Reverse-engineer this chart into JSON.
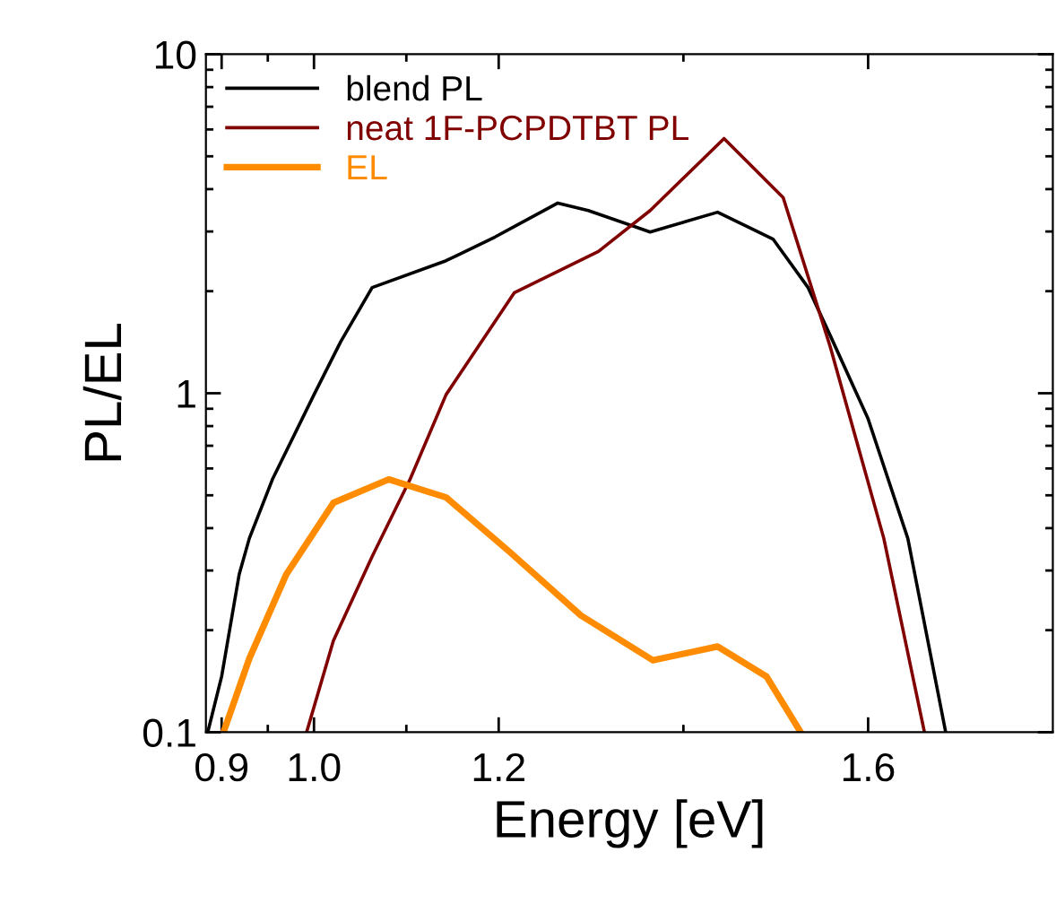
{
  "chart_data": {
    "type": "line",
    "xlabel": "Energy [eV]",
    "ylabel": "PL/EL",
    "log": "y",
    "xlim": [
      0.883,
      1.8
    ],
    "xticks": [
      0.9,
      {
        "value": 1.0,
        "label": "1.0"
      },
      1.2,
      1.6
    ],
    "ylim": [
      0.1,
      10
    ],
    "yticks": [
      0.1,
      1,
      10
    ],
    "legend": "top left",
    "grid": false,
    "line_style": "solid",
    "marker": "none",
    "series": [
      {
        "name": "blend PL",
        "color": "#000000",
        "x": [
          0.885,
          0.9,
          0.919,
          0.93,
          0.955,
          1.0,
          1.029,
          1.063,
          1.143,
          1.196,
          1.264,
          1.297,
          1.364,
          1.437,
          1.497,
          1.535,
          1.559,
          1.6,
          1.643,
          1.684
        ],
        "values": [
          0.1,
          0.146,
          0.292,
          0.373,
          0.557,
          0.99,
          1.42,
          2.05,
          2.46,
          2.89,
          3.64,
          3.46,
          2.99,
          3.42,
          2.85,
          2.05,
          1.48,
          0.84,
          0.373,
          0.1
        ]
      },
      {
        "name": "neat 1F-PCPDTBT PL",
        "color": "#800000",
        "x": [
          0.992,
          1.021,
          1.063,
          1.104,
          1.143,
          1.217,
          1.308,
          1.364,
          1.444,
          1.508,
          1.559,
          1.617,
          1.661
        ],
        "values": [
          0.1,
          0.186,
          0.33,
          0.557,
          0.99,
          1.98,
          2.62,
          3.46,
          5.64,
          3.78,
          1.37,
          0.373,
          0.1
        ]
      },
      {
        "name": "EL",
        "color": "#ff8c00",
        "x": [
          0.902,
          0.93,
          0.97,
          1.021,
          1.081,
          1.143,
          1.211,
          1.289,
          1.367,
          1.437,
          1.49,
          1.527
        ],
        "values": [
          0.1,
          0.165,
          0.292,
          0.475,
          0.557,
          0.493,
          0.342,
          0.221,
          0.163,
          0.179,
          0.146,
          0.1
        ]
      }
    ]
  }
}
